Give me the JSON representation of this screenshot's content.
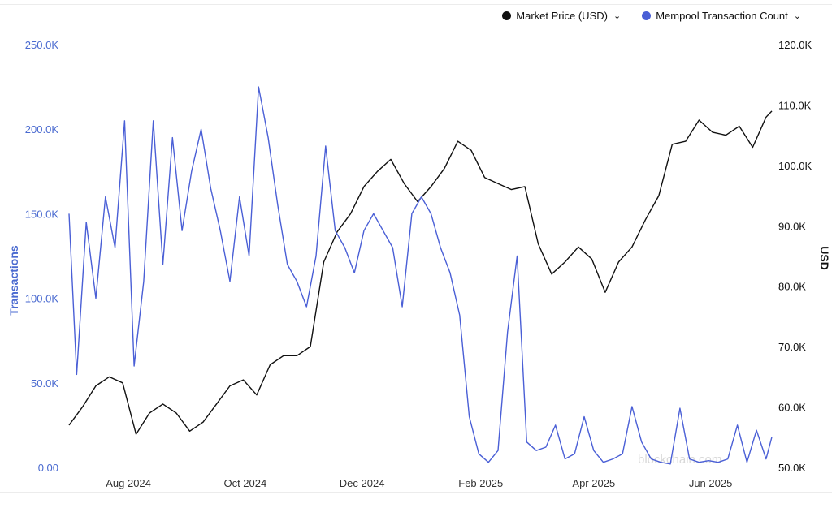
{
  "legend": {
    "items": [
      {
        "label": "Market Price (USD)",
        "color": "#111111",
        "icon": "chevron-down-icon"
      },
      {
        "label": "Mempool Transaction Count",
        "color": "#4a5fd6",
        "icon": "chevron-down-icon"
      }
    ]
  },
  "chart_data": {
    "type": "line",
    "title": "",
    "y_left": {
      "label": "Transactions",
      "ticks": [
        "250.0K",
        "200.0K",
        "150.0K",
        "100.0K",
        "50.0K",
        "0.00"
      ],
      "range": [
        0,
        250000
      ],
      "color": "#4a6ad0"
    },
    "y_right": {
      "label": "USD",
      "ticks": [
        "120.0K",
        "110.0K",
        "100.0K",
        "90.0K",
        "80.0K",
        "70.0K",
        "60.0K",
        "50.0K"
      ],
      "range": [
        50000,
        120000
      ],
      "color": "#111111"
    },
    "x_ticks": [
      "Aug 2024",
      "Oct 2024",
      "Dec 2024",
      "Feb 2025",
      "Apr 2025",
      "Jun 2025"
    ],
    "x_range": [
      "2024-07-01",
      "2025-07-03"
    ],
    "grid": false,
    "legend_position": "top-right",
    "watermark": "blockchain.com",
    "series": [
      {
        "name": "Market Price (USD)",
        "axis": "right",
        "color": "#111111",
        "x": [
          "2024-07-01",
          "2024-07-08",
          "2024-07-15",
          "2024-07-22",
          "2024-07-29",
          "2024-08-05",
          "2024-08-12",
          "2024-08-19",
          "2024-08-26",
          "2024-09-02",
          "2024-09-09",
          "2024-09-16",
          "2024-09-23",
          "2024-09-30",
          "2024-10-07",
          "2024-10-14",
          "2024-10-21",
          "2024-10-28",
          "2024-11-04",
          "2024-11-11",
          "2024-11-18",
          "2024-11-25",
          "2024-12-02",
          "2024-12-09",
          "2024-12-16",
          "2024-12-23",
          "2024-12-30",
          "2025-01-06",
          "2025-01-13",
          "2025-01-20",
          "2025-01-27",
          "2025-02-03",
          "2025-02-10",
          "2025-02-17",
          "2025-02-24",
          "2025-03-03",
          "2025-03-10",
          "2025-03-17",
          "2025-03-24",
          "2025-03-31",
          "2025-04-07",
          "2025-04-14",
          "2025-04-21",
          "2025-04-28",
          "2025-05-05",
          "2025-05-12",
          "2025-05-19",
          "2025-05-26",
          "2025-06-02",
          "2025-06-09",
          "2025-06-16",
          "2025-06-23",
          "2025-06-30",
          "2025-07-03"
        ],
        "values": [
          57000,
          60000,
          63500,
          65000,
          64000,
          55500,
          59000,
          60500,
          59000,
          56000,
          57500,
          60500,
          63500,
          64500,
          62000,
          67000,
          68500,
          68500,
          70000,
          84000,
          89000,
          92000,
          96500,
          99000,
          101000,
          97000,
          94000,
          96500,
          99500,
          104000,
          102500,
          98000,
          97000,
          96000,
          96500,
          87000,
          82000,
          84000,
          86500,
          84500,
          79000,
          84000,
          86500,
          91000,
          95000,
          103500,
          104000,
          107500,
          105500,
          105000,
          106500,
          103000,
          108000,
          109000
        ],
        "shape_note": "none"
      },
      {
        "name": "Mempool Transaction Count",
        "axis": "left",
        "color": "#4a5fd6",
        "x": [
          "2024-07-01",
          "2024-07-05",
          "2024-07-10",
          "2024-07-15",
          "2024-07-20",
          "2024-07-25",
          "2024-07-30",
          "2024-08-04",
          "2024-08-09",
          "2024-08-14",
          "2024-08-19",
          "2024-08-24",
          "2024-08-29",
          "2024-09-03",
          "2024-09-08",
          "2024-09-13",
          "2024-09-18",
          "2024-09-23",
          "2024-09-28",
          "2024-10-03",
          "2024-10-08",
          "2024-10-13",
          "2024-10-18",
          "2024-10-23",
          "2024-10-28",
          "2024-11-02",
          "2024-11-07",
          "2024-11-12",
          "2024-11-17",
          "2024-11-22",
          "2024-11-27",
          "2024-12-02",
          "2024-12-07",
          "2024-12-12",
          "2024-12-17",
          "2024-12-22",
          "2024-12-27",
          "2025-01-01",
          "2025-01-06",
          "2025-01-11",
          "2025-01-16",
          "2025-01-21",
          "2025-01-26",
          "2025-01-31",
          "2025-02-05",
          "2025-02-10",
          "2025-02-15",
          "2025-02-20",
          "2025-02-25",
          "2025-03-02",
          "2025-03-07",
          "2025-03-12",
          "2025-03-17",
          "2025-03-22",
          "2025-03-27",
          "2025-04-01",
          "2025-04-06",
          "2025-04-11",
          "2025-04-16",
          "2025-04-21",
          "2025-04-26",
          "2025-05-01",
          "2025-05-06",
          "2025-05-11",
          "2025-05-16",
          "2025-05-21",
          "2025-05-26",
          "2025-05-31",
          "2025-06-05",
          "2025-06-10",
          "2025-06-15",
          "2025-06-20",
          "2025-06-25",
          "2025-06-30",
          "2025-07-03"
        ],
        "values": [
          150000,
          55000,
          145000,
          100000,
          160000,
          130000,
          205000,
          60000,
          110000,
          205000,
          120000,
          195000,
          140000,
          175000,
          200000,
          165000,
          140000,
          110000,
          160000,
          125000,
          225000,
          195000,
          155000,
          120000,
          110000,
          95000,
          125000,
          190000,
          140000,
          130000,
          115000,
          140000,
          150000,
          140000,
          130000,
          95000,
          150000,
          160000,
          150000,
          130000,
          115000,
          90000,
          30000,
          8000,
          3000,
          10000,
          80000,
          125000,
          15000,
          10000,
          12000,
          25000,
          5000,
          8000,
          30000,
          10000,
          3000,
          5000,
          8000,
          36000,
          15000,
          5000,
          3000,
          2000,
          35000,
          5000,
          3000,
          4000,
          3000,
          5000,
          25000,
          3000,
          22000,
          5000,
          18000
        ],
        "shape_note": "none"
      }
    ]
  }
}
